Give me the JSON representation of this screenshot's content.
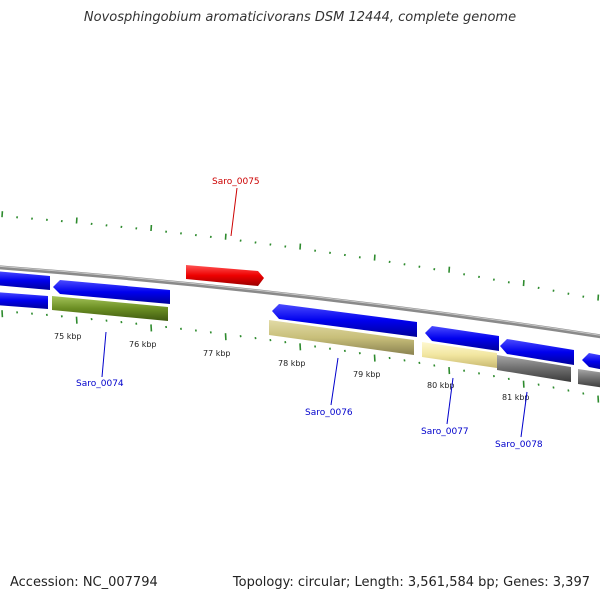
{
  "title": "Novosphingobium aromaticivorans DSM 12444, complete genome",
  "footer": {
    "accession": "Accession: NC_007794",
    "stats": "Topology: circular; Length: 3,561,584 bp; Genes: 3,397"
  },
  "ticks": [
    "75 kbp",
    "76 kbp",
    "77 kbp",
    "78 kbp",
    "79 kbp",
    "80 kbp",
    "81 kbp"
  ],
  "gene_labels": [
    {
      "name": "Saro_0075",
      "color": "#cc0000"
    },
    {
      "name": "Saro_0074",
      "color": "#0000cc"
    },
    {
      "name": "Saro_0076",
      "color": "#0000cc"
    },
    {
      "name": "Saro_0077",
      "color": "#0000cc"
    },
    {
      "name": "Saro_0078",
      "color": "#0000cc"
    }
  ],
  "colors": {
    "backbone": "#8a8a8a",
    "cds": "#0000ee",
    "highlight": "#ee0000",
    "olive": "#6b8e23",
    "khaki": "#c8bf7a",
    "pale_yellow": "#f2e6a0",
    "gray": "#6e6e6e",
    "tick": "#2e8b2e"
  }
}
